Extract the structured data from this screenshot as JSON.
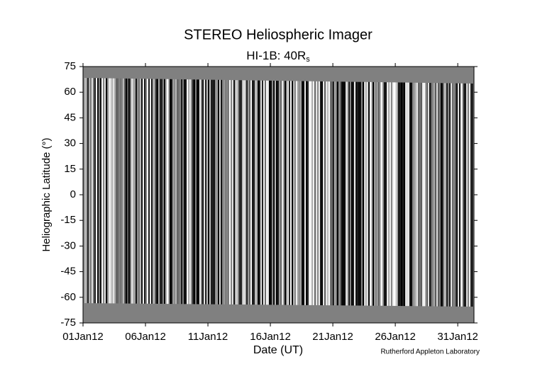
{
  "chart_data": {
    "type": "image",
    "title": "STEREO Heliospheric Imager",
    "subtitle": "HI-1B: 40R",
    "subtitle_subscript": "s",
    "xlabel": "Date (UT)",
    "ylabel": "Heliographic Latitude (°)",
    "credit": "Rutherford Appleton Laboratory",
    "xlim": [
      1,
      32.3
    ],
    "xticks": [
      {
        "value": 1,
        "label": "01Jan12"
      },
      {
        "value": 6,
        "label": "06Jan12"
      },
      {
        "value": 11,
        "label": "11Jan12"
      },
      {
        "value": 16,
        "label": "16Jan12"
      },
      {
        "value": 21,
        "label": "21Jan12"
      },
      {
        "value": 26,
        "label": "26Jan12"
      },
      {
        "value": 31,
        "label": "31Jan12"
      }
    ],
    "ylim": [
      -75,
      75
    ],
    "yticks": [
      -75,
      -60,
      -45,
      -30,
      -15,
      0,
      15,
      30,
      45,
      60,
      75
    ]
  }
}
